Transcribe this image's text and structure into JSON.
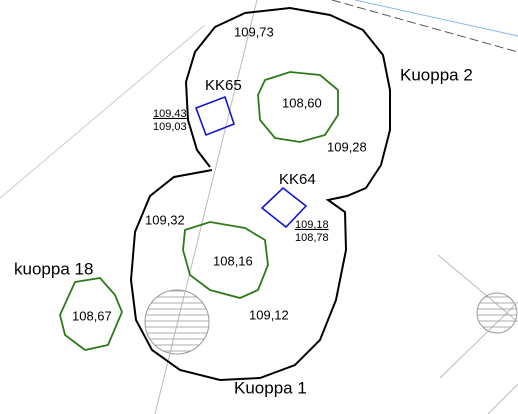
{
  "labels": {
    "level_top": "109,73",
    "kk65": "KK65",
    "kuoppa_2": "Kuoppa 2",
    "kk65_top": "109,43",
    "kk65_bottom": "109,03",
    "pit_north": "108,60",
    "level_east": "109,28",
    "kk64": "KK64",
    "kk64_top": "109,18",
    "kk64_bottom": "108,78",
    "level_west": "109,32",
    "pit_south": "108,16",
    "kuoppa_18": "kuoppa 18",
    "pit_18": "108,67",
    "level_south": "109,12",
    "kuoppa_1": "Kuoppa 1"
  }
}
